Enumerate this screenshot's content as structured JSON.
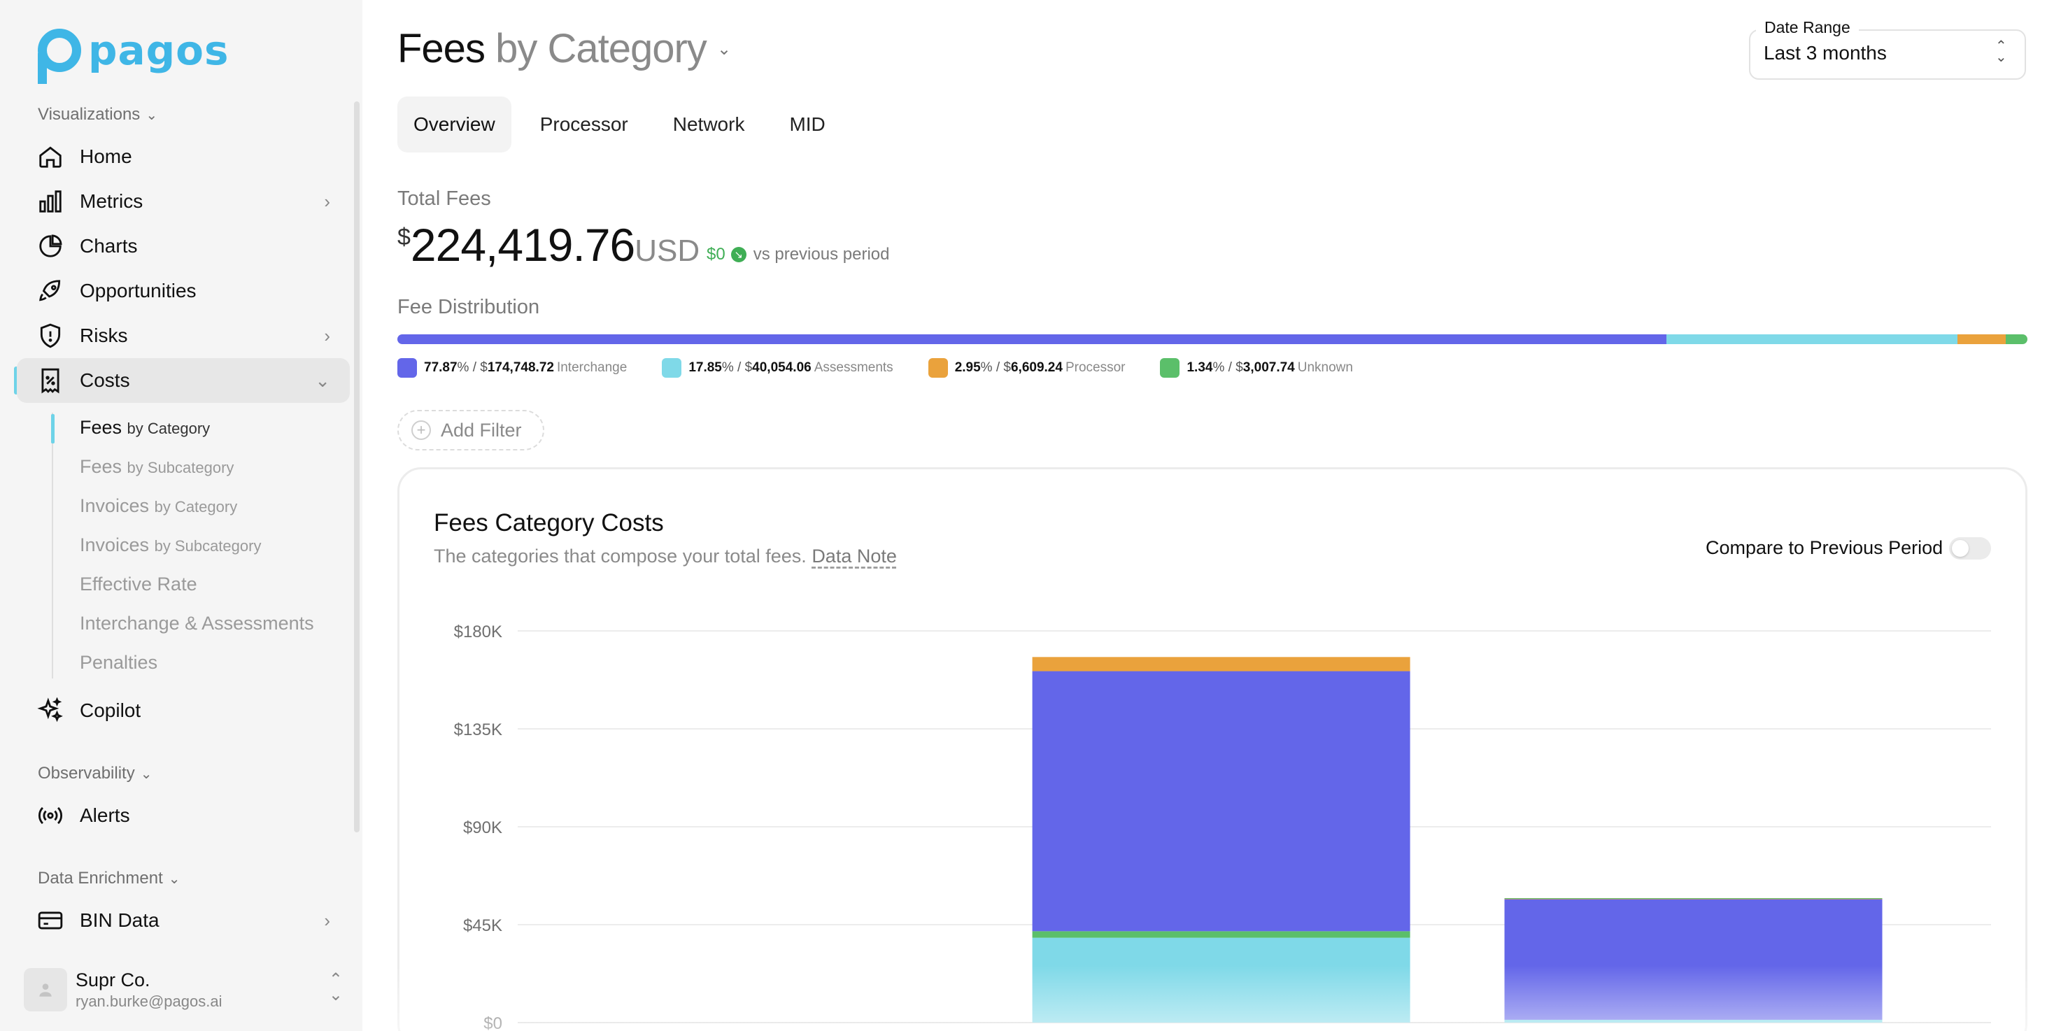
{
  "brand": {
    "logo_text": "pagos",
    "color": "#3fb6e6"
  },
  "sidebar": {
    "sections": {
      "visualizations": "Visualizations",
      "observability": "Observability",
      "data_enrichment": "Data Enrichment"
    },
    "items": {
      "home": "Home",
      "metrics": "Metrics",
      "charts": "Charts",
      "opportunities": "Opportunities",
      "risks": "Risks",
      "costs": "Costs",
      "copilot": "Copilot",
      "alerts": "Alerts",
      "bin_data": "BIN Data"
    },
    "costs_sub": [
      {
        "main": "Fees",
        "suffix": "by Category"
      },
      {
        "main": "Fees",
        "suffix": "by Subcategory"
      },
      {
        "main": "Invoices",
        "suffix": "by Category"
      },
      {
        "main": "Invoices",
        "suffix": "by Subcategory"
      },
      {
        "main": "Effective Rate",
        "suffix": ""
      },
      {
        "main": "Interchange & Assessments",
        "suffix": ""
      },
      {
        "main": "Penalties",
        "suffix": ""
      }
    ],
    "user": {
      "name": "Supr Co.",
      "email": "ryan.burke@pagos.ai"
    }
  },
  "header": {
    "title_main": "Fees",
    "title_suffix": "by Category",
    "date_range_label": "Date Range",
    "date_range_value": "Last 3 months"
  },
  "tabs": [
    "Overview",
    "Processor",
    "Network",
    "MID"
  ],
  "summary": {
    "total_label": "Total Fees",
    "currency_symbol": "$",
    "total_value": "224,419.76",
    "currency_code": "USD",
    "delta_value": "$0",
    "delta_text": "vs previous period"
  },
  "distribution": {
    "label": "Fee Distribution",
    "items": [
      {
        "pct": "77.87",
        "amount": "174,748.72",
        "name": "Interchange",
        "share": 0.7787,
        "color": "#6366e9"
      },
      {
        "pct": "17.85",
        "amount": "40,054.06",
        "name": "Assessments",
        "share": 0.1785,
        "color": "#7fd9e8"
      },
      {
        "pct": "2.95",
        "amount": "6,609.24",
        "name": "Processor",
        "share": 0.0295,
        "color": "#eaa23c"
      },
      {
        "pct": "1.34",
        "amount": "3,007.74",
        "name": "Unknown",
        "share": 0.0134,
        "color": "#5bbf6a"
      }
    ]
  },
  "filter": {
    "add_label": "Add Filter"
  },
  "card": {
    "title": "Fees Category Costs",
    "subtitle": "The categories that compose your total fees.",
    "note_link": "Data Note",
    "compare_label": "Compare to Previous Period",
    "compare_on": false
  },
  "chart_data": {
    "type": "bar",
    "stacked": true,
    "y_ticks": [
      "$180K",
      "$135K",
      "$90K",
      "$45K",
      "$0"
    ],
    "ylim": [
      0,
      180000
    ],
    "grid": true,
    "bars": [
      {
        "segments": [
          {
            "series": "Assessments",
            "value": 39000,
            "color": "#7fd9e8"
          },
          {
            "series": "Unknown",
            "value": 3000,
            "color": "#5bbf6a"
          },
          {
            "series": "Interchange",
            "value": 119500,
            "color": "#6366e9"
          },
          {
            "series": "Processor",
            "value": 6500,
            "color": "#eaa23c"
          }
        ]
      },
      {
        "segments": [
          {
            "series": "Assessments",
            "value": 1300,
            "color": "#7fd9e8"
          },
          {
            "series": "Interchange",
            "value": 55500,
            "color": "#6366e9"
          },
          {
            "series": "Processor",
            "value": 200,
            "color": "#eaa23c"
          },
          {
            "series": "Unknown",
            "value": 200,
            "color": "#5bbf6a"
          }
        ]
      }
    ]
  }
}
